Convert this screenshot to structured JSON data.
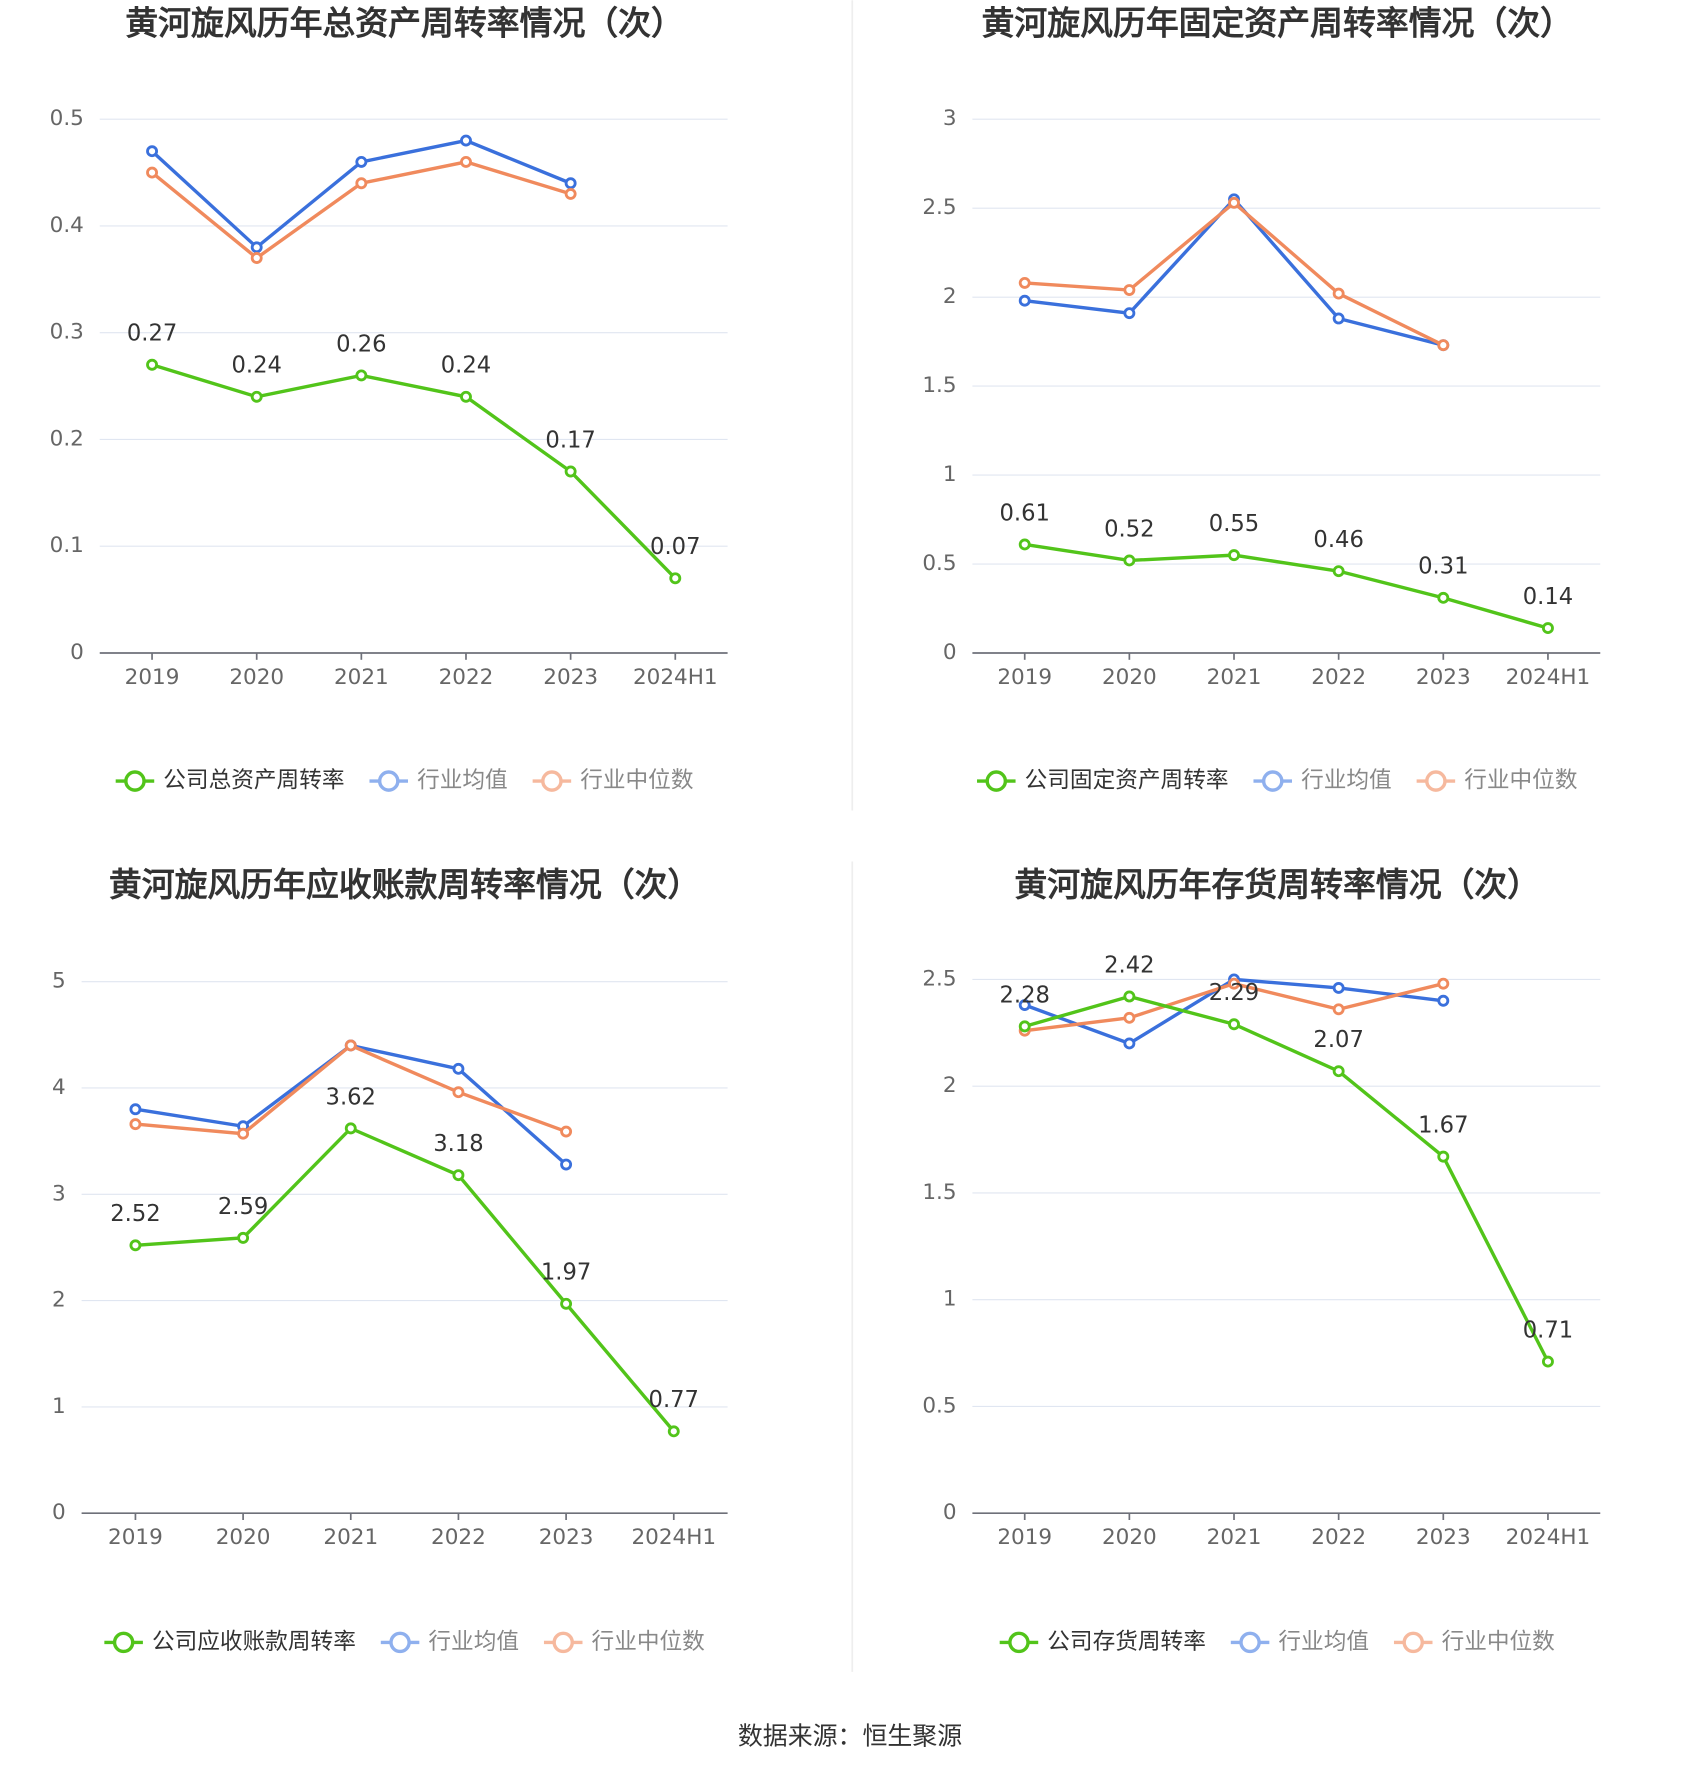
{
  "chart_data": [
    {
      "type": "line",
      "title": "黄河旋风历年总资产周转率情况（次）",
      "categories": [
        "2019",
        "2020",
        "2021",
        "2022",
        "2023",
        "2024H1"
      ],
      "series": [
        {
          "name": "公司总资产周转率",
          "color": "#52c41a",
          "values": [
            0.27,
            0.24,
            0.26,
            0.24,
            0.17,
            0.07
          ]
        },
        {
          "name": "行业均值",
          "color": "#3a70dc",
          "values": [
            0.47,
            0.38,
            0.46,
            0.48,
            0.44,
            null
          ]
        },
        {
          "name": "行业中位数",
          "color": "#f08a5d",
          "values": [
            0.45,
            0.37,
            0.44,
            0.46,
            0.43,
            null
          ]
        }
      ],
      "ylim": [
        0,
        0.5
      ],
      "yticks": [
        0,
        0.1,
        0.2,
        0.3,
        0.4,
        0.5
      ],
      "grid": true
    },
    {
      "type": "line",
      "title": "黄河旋风历年固定资产周转率情况（次）",
      "categories": [
        "2019",
        "2020",
        "2021",
        "2022",
        "2023",
        "2024H1"
      ],
      "series": [
        {
          "name": "公司固定资产周转率",
          "color": "#52c41a",
          "values": [
            0.61,
            0.52,
            0.55,
            0.46,
            0.31,
            0.14
          ]
        },
        {
          "name": "行业均值",
          "color": "#3a70dc",
          "values": [
            1.98,
            1.91,
            2.55,
            1.88,
            1.73,
            null
          ]
        },
        {
          "name": "行业中位数",
          "color": "#f08a5d",
          "values": [
            2.08,
            2.04,
            2.53,
            2.02,
            1.73,
            null
          ]
        }
      ],
      "ylim": [
        0,
        3
      ],
      "yticks": [
        0,
        0.5,
        1,
        1.5,
        2,
        2.5,
        3
      ],
      "grid": true
    },
    {
      "type": "line",
      "title": "黄河旋风历年应收账款周转率情况（次）",
      "categories": [
        "2019",
        "2020",
        "2021",
        "2022",
        "2023",
        "2024H1"
      ],
      "series": [
        {
          "name": "公司应收账款周转率",
          "color": "#52c41a",
          "values": [
            2.52,
            2.59,
            3.62,
            3.18,
            1.97,
            0.77
          ]
        },
        {
          "name": "行业均值",
          "color": "#3a70dc",
          "values": [
            3.8,
            3.64,
            4.4,
            4.18,
            3.28,
            null
          ]
        },
        {
          "name": "行业中位数",
          "color": "#f08a5d",
          "values": [
            3.66,
            3.57,
            4.4,
            3.96,
            3.59,
            null
          ]
        }
      ],
      "ylim": [
        0,
        5
      ],
      "yticks": [
        0,
        1,
        2,
        3,
        4,
        5
      ],
      "grid": true
    },
    {
      "type": "line",
      "title": "黄河旋风历年存货周转率情况（次）",
      "categories": [
        "2019",
        "2020",
        "2021",
        "2022",
        "2023",
        "2024H1"
      ],
      "series": [
        {
          "name": "公司存货周转率",
          "color": "#52c41a",
          "values": [
            2.28,
            2.42,
            2.29,
            2.07,
            1.67,
            0.71
          ]
        },
        {
          "name": "行业均值",
          "color": "#3a70dc",
          "values": [
            2.38,
            2.2,
            2.5,
            2.46,
            2.4,
            null
          ]
        },
        {
          "name": "行业中位数",
          "color": "#f08a5d",
          "values": [
            2.26,
            2.32,
            2.48,
            2.36,
            2.48,
            null
          ]
        }
      ],
      "ylim": [
        0,
        2.5
      ],
      "yticks": [
        0,
        0.5,
        1,
        1.5,
        2,
        2.5
      ],
      "grid": true
    }
  ],
  "source": "数据来源：恒生聚源"
}
